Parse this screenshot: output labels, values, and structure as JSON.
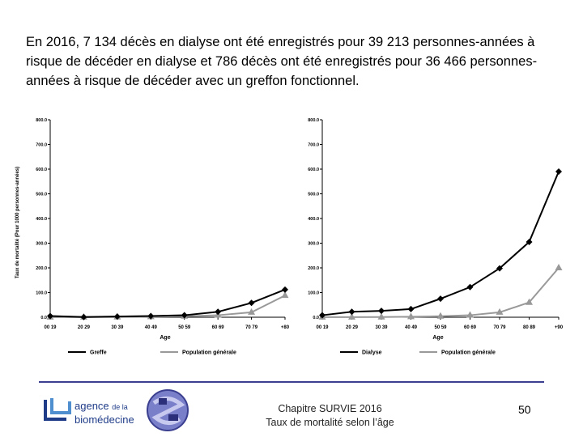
{
  "intro_text": "En 2016, 7 134 décès en dialyse ont été enregistrés pour 39 213 personnes-années à risque de décéder en dialyse et 786 décès ont été enregistrés pour 36 466  personnes-années à risque de décéder avec un greffon fonctionnel.",
  "colors": {
    "series_primary": "#000000",
    "series_general": "#999999",
    "footer_rule": "#3c3f8f",
    "logo_blue": "#1f3c88"
  },
  "chart_data": [
    {
      "type": "line",
      "title": "",
      "xlabel": "Age",
      "ylabel": "Taux de mortalité (Pour 1000 personnes-années)",
      "ylim": [
        0,
        800
      ],
      "y_ticks": [
        "0.0",
        "100.0",
        "200.0",
        "300.0",
        "400.0",
        "500.0",
        "600.0",
        "700.0",
        "800.0"
      ],
      "categories": [
        "00 19",
        "20 29",
        "30 39",
        "40 49",
        "50 59",
        "60 69",
        "70 79",
        "+80"
      ],
      "legend_position": "bottom",
      "grid": false,
      "series": [
        {
          "name": "Greffe",
          "marker": "diamond",
          "color": "#000000",
          "values": [
            5,
            1,
            3,
            5,
            8,
            22,
            58,
            112
          ]
        },
        {
          "name": "Population générale",
          "marker": "triangle",
          "color": "#999999",
          "values": [
            0.5,
            0.5,
            1,
            2,
            4,
            8,
            20,
            88
          ]
        }
      ]
    },
    {
      "type": "line",
      "title": "",
      "xlabel": "Age",
      "ylabel": "",
      "ylim": [
        0,
        800
      ],
      "y_ticks": [
        "0.0",
        "100.0",
        "200.0",
        "300.0",
        "400.0",
        "500.0",
        "600.0",
        "700.0",
        "800.0"
      ],
      "categories": [
        "00 19",
        "20 29",
        "30 39",
        "40 49",
        "50 59",
        "60 69",
        "70 79",
        "80 89",
        "+90"
      ],
      "legend_position": "bottom",
      "grid": false,
      "series": [
        {
          "name": "Dialyse",
          "marker": "diamond",
          "color": "#000000",
          "values": [
            8,
            22,
            26,
            33,
            75,
            122,
            198,
            305,
            590
          ]
        },
        {
          "name": "Population générale",
          "marker": "triangle",
          "color": "#999999",
          "values": [
            0.5,
            0.5,
            1,
            2,
            4,
            8,
            20,
            60,
            200
          ]
        }
      ]
    }
  ],
  "footer": {
    "logo_line1": "agence",
    "logo_de_la": "de la",
    "logo_line2": "biomédecine",
    "chapter": "Chapitre SURVIE 2016",
    "subtitle": "Taux de mortalité selon l’âge",
    "page_number": "50"
  }
}
